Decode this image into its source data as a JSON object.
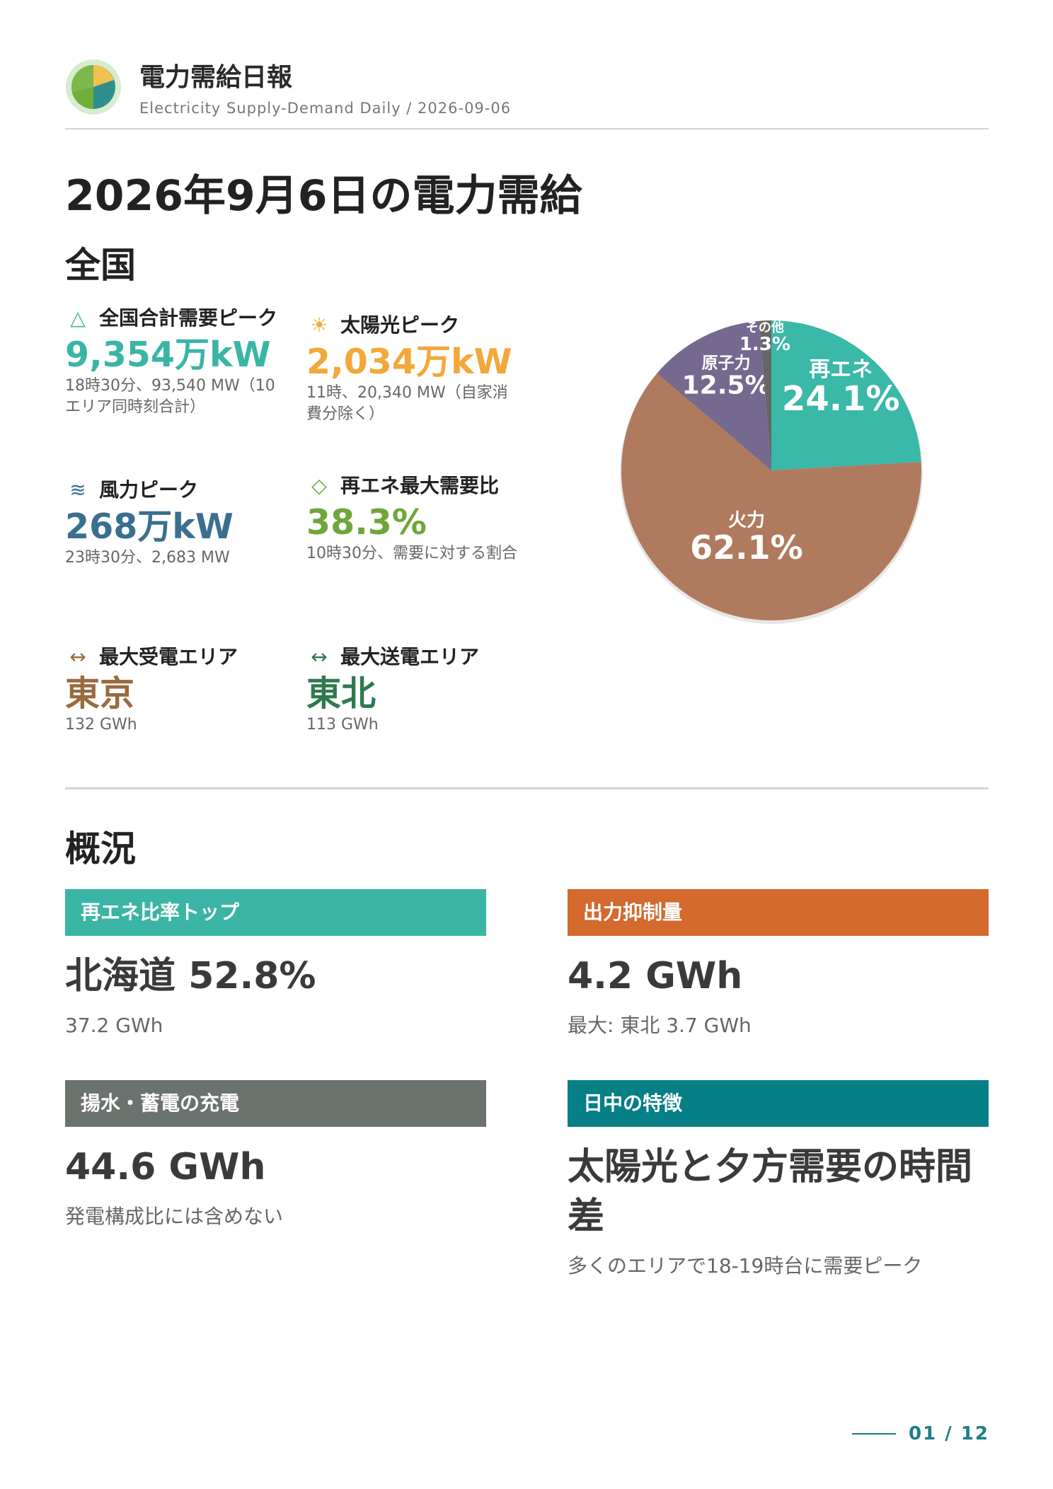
{
  "header": {
    "title": "電力需給日報",
    "subtitle": "Electricity Supply-Demand Daily / 2026-09-06"
  },
  "page_title": "2026年9月6日の電力需給",
  "national": {
    "heading": "全国",
    "stats": [
      {
        "icon": "triangle-icon",
        "glyph": "△",
        "label": "全国合計需要ピーク",
        "value": "9,354万kW",
        "note": "18時30分、93,540 MW（10エリア同時刻合計）",
        "color": "#3ab5a5"
      },
      {
        "icon": "sun-icon",
        "glyph": "☀",
        "label": "太陽光ピーク",
        "value": "2,034万kW",
        "note": "11時、20,340 MW（自家消費分除く）",
        "color": "#f2a83a"
      },
      {
        "icon": "wind-icon",
        "glyph": "≋",
        "label": "風力ピーク",
        "value": "268万kW",
        "note": "23時30分、2,683 MW",
        "color": "#3a6f8f"
      },
      {
        "icon": "diamond-icon",
        "glyph": "◇",
        "label": "再エネ最大需要比",
        "value": "38.3%",
        "note": "10時30分、需要に対する割合",
        "color": "#6fa63a"
      },
      {
        "icon": "arrows-icon",
        "glyph": "↔",
        "label": "最大受電エリア",
        "value": "東京",
        "note": "132 GWh",
        "color": "#9a6a3e"
      },
      {
        "icon": "arrows-icon",
        "glyph": "↔",
        "label": "最大送電エリア",
        "value": "東北",
        "note": "113 GWh",
        "color": "#2e7a4e"
      }
    ]
  },
  "chart_data": {
    "type": "pie",
    "slices": [
      {
        "label": "再エネ",
        "value": 24.1,
        "display": "24.1%",
        "color": "#3ab8a8"
      },
      {
        "label": "火力",
        "value": 62.1,
        "display": "62.1%",
        "color": "#b07a5e"
      },
      {
        "label": "原子力",
        "value": 12.5,
        "display": "12.5%",
        "color": "#76698f"
      },
      {
        "label": "その他",
        "value": 1.3,
        "display": "1.3%",
        "color": "#666666"
      }
    ]
  },
  "overview": {
    "heading": "概況",
    "cards": [
      {
        "label": "再エネ比率トップ",
        "value": "北海道 52.8%",
        "note": "37.2 GWh",
        "color": "#3ab5a5"
      },
      {
        "label": "出力抑制量",
        "value": "4.2 GWh",
        "note": "最大: 東北 3.7 GWh",
        "color": "#d46a2e"
      },
      {
        "label": "揚水・蓄電の充電",
        "value": "44.6 GWh",
        "note": "発電構成比には含めない",
        "color": "#6b736e"
      },
      {
        "label": "日中の特徴",
        "value": "太陽光と夕方需要の時間差",
        "note": "多くのエリアで18-19時台に需要ピーク",
        "color": "#067f86"
      }
    ]
  },
  "pager": "01 / 12"
}
